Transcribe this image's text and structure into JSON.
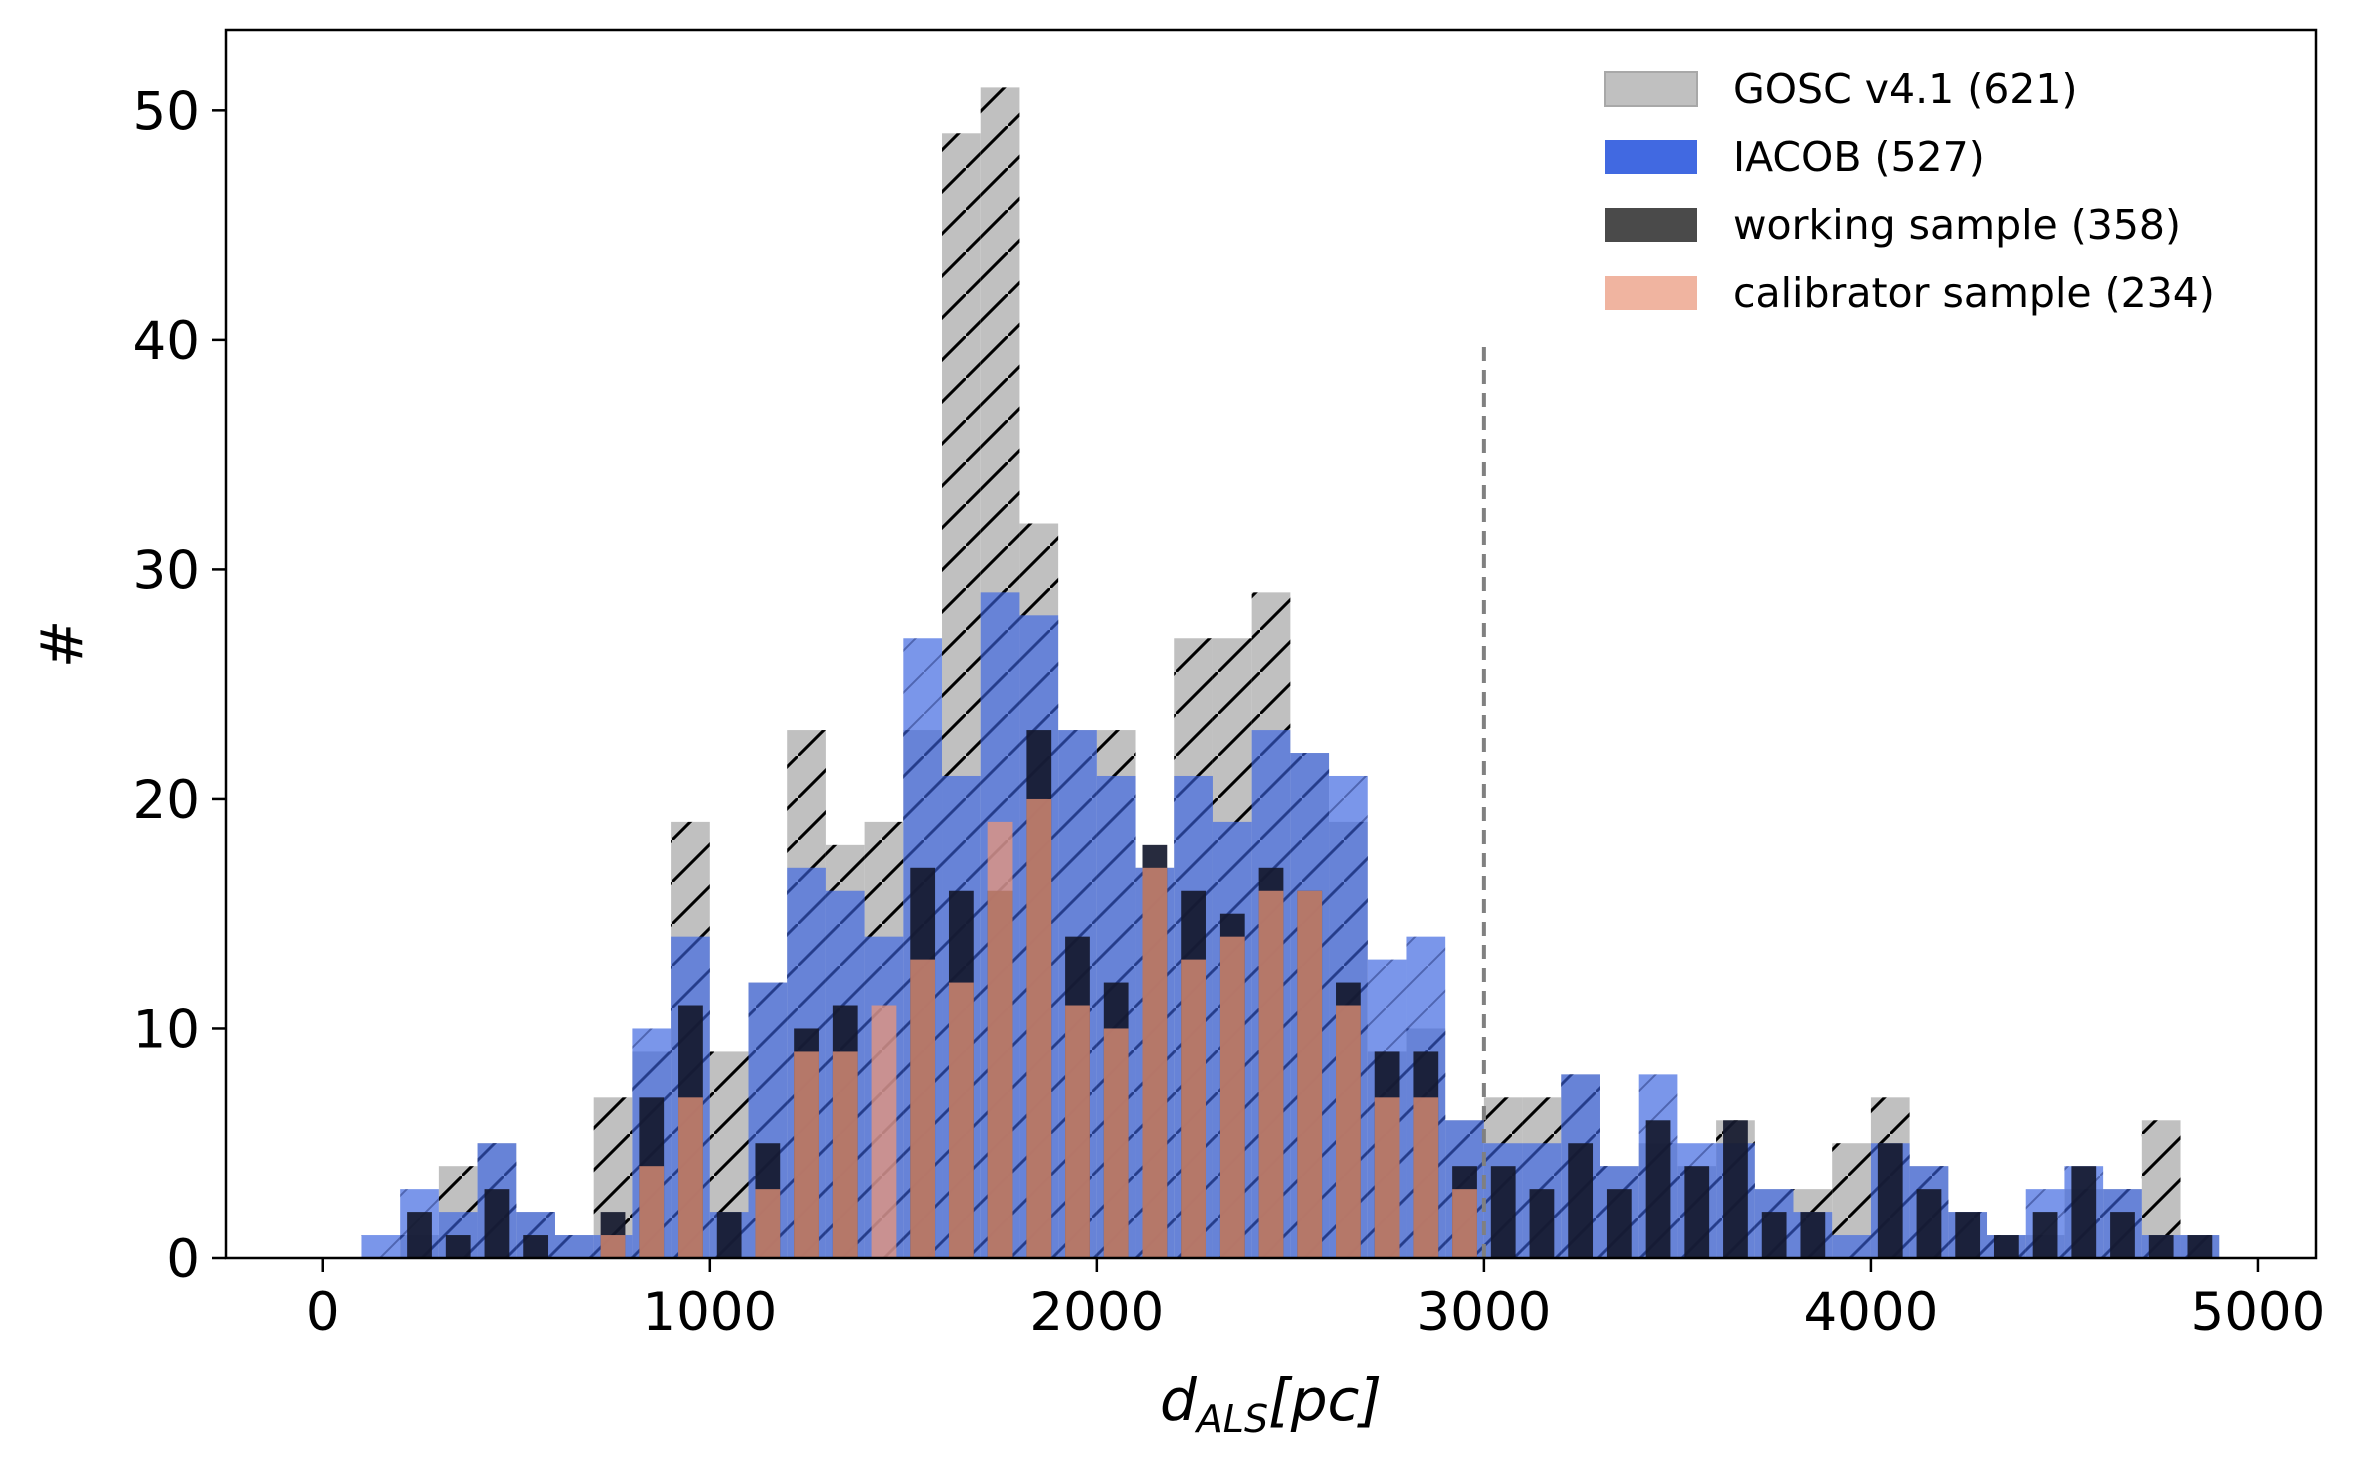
{
  "chart_data": {
    "type": "bar",
    "title": "",
    "xlabel": "d_ALS[pc]",
    "xlabel_main": "d",
    "xlabel_sub": "ALS",
    "xlabel_unit": "[pc]",
    "ylabel": "#",
    "xlim": [
      -250,
      5150
    ],
    "ylim": [
      0,
      53.5
    ],
    "xticks": [
      0,
      1000,
      2000,
      3000,
      4000,
      5000
    ],
    "xtick_labels": [
      "0",
      "1000",
      "2000",
      "3000",
      "4000",
      "5000"
    ],
    "yticks": [
      0,
      10,
      20,
      30,
      40,
      50
    ],
    "ytick_labels": [
      "0",
      "10",
      "20",
      "30",
      "40",
      "50"
    ],
    "bin_width": 100,
    "bin_starts": [
      100,
      200,
      300,
      400,
      500,
      600,
      700,
      800,
      900,
      1000,
      1100,
      1200,
      1300,
      1400,
      1500,
      1600,
      1700,
      1800,
      1900,
      2000,
      2100,
      2200,
      2300,
      2400,
      2500,
      2600,
      2700,
      2800,
      2900,
      3000,
      3100,
      3200,
      3300,
      3400,
      3500,
      3600,
      3700,
      3800,
      3900,
      4000,
      4100,
      4200,
      4300,
      4400,
      4500,
      4600,
      4700,
      4800
    ],
    "vline": {
      "x": 3000,
      "ymax": 40,
      "style": "dashed"
    },
    "legend_position": "top-right",
    "series": [
      {
        "name": "GOSC v4.1 (621)",
        "color": "#c0c0c0",
        "hatched": true,
        "values": [
          0,
          1,
          4,
          5,
          2,
          1,
          7,
          9,
          19,
          9,
          12,
          23,
          18,
          19,
          23,
          49,
          51,
          32,
          23,
          23,
          17,
          27,
          27,
          29,
          22,
          19,
          9,
          10,
          6,
          7,
          7,
          8,
          4,
          5,
          4,
          6,
          3,
          3,
          5,
          7,
          4,
          2,
          1,
          1,
          3,
          3,
          6,
          1
        ]
      },
      {
        "name": "IACOB (527)",
        "color": "#4169e1",
        "hatched": false,
        "values": [
          1,
          3,
          2,
          5,
          2,
          1,
          1,
          10,
          14,
          2,
          12,
          17,
          16,
          14,
          27,
          21,
          29,
          28,
          23,
          21,
          17,
          21,
          19,
          23,
          22,
          21,
          13,
          14,
          6,
          5,
          5,
          8,
          4,
          8,
          5,
          5,
          3,
          2,
          1,
          5,
          4,
          2,
          1,
          3,
          4,
          3,
          1,
          1
        ]
      },
      {
        "name": "working sample (358)",
        "color": "#4a4a4a",
        "hatched": false,
        "values": [
          0,
          2,
          1,
          3,
          1,
          0,
          2,
          7,
          11,
          2,
          5,
          10,
          11,
          0,
          17,
          16,
          16,
          23,
          14,
          12,
          18,
          16,
          15,
          17,
          16,
          12,
          9,
          9,
          4,
          4,
          3,
          5,
          3,
          6,
          4,
          6,
          2,
          2,
          0,
          5,
          3,
          2,
          1,
          2,
          4,
          2,
          1,
          1
        ]
      },
      {
        "name": "calibrator sample (234)",
        "color": "#e9967a",
        "hatched": false,
        "values": [
          0,
          0,
          0,
          0,
          0,
          0,
          1,
          4,
          7,
          0,
          3,
          9,
          9,
          11,
          13,
          12,
          19,
          20,
          11,
          10,
          17,
          13,
          14,
          16,
          16,
          11,
          7,
          7,
          3,
          0,
          0,
          0,
          0,
          0,
          0,
          0,
          0,
          0,
          0,
          0,
          0,
          0,
          0,
          0,
          0,
          0,
          0,
          0
        ]
      }
    ]
  }
}
